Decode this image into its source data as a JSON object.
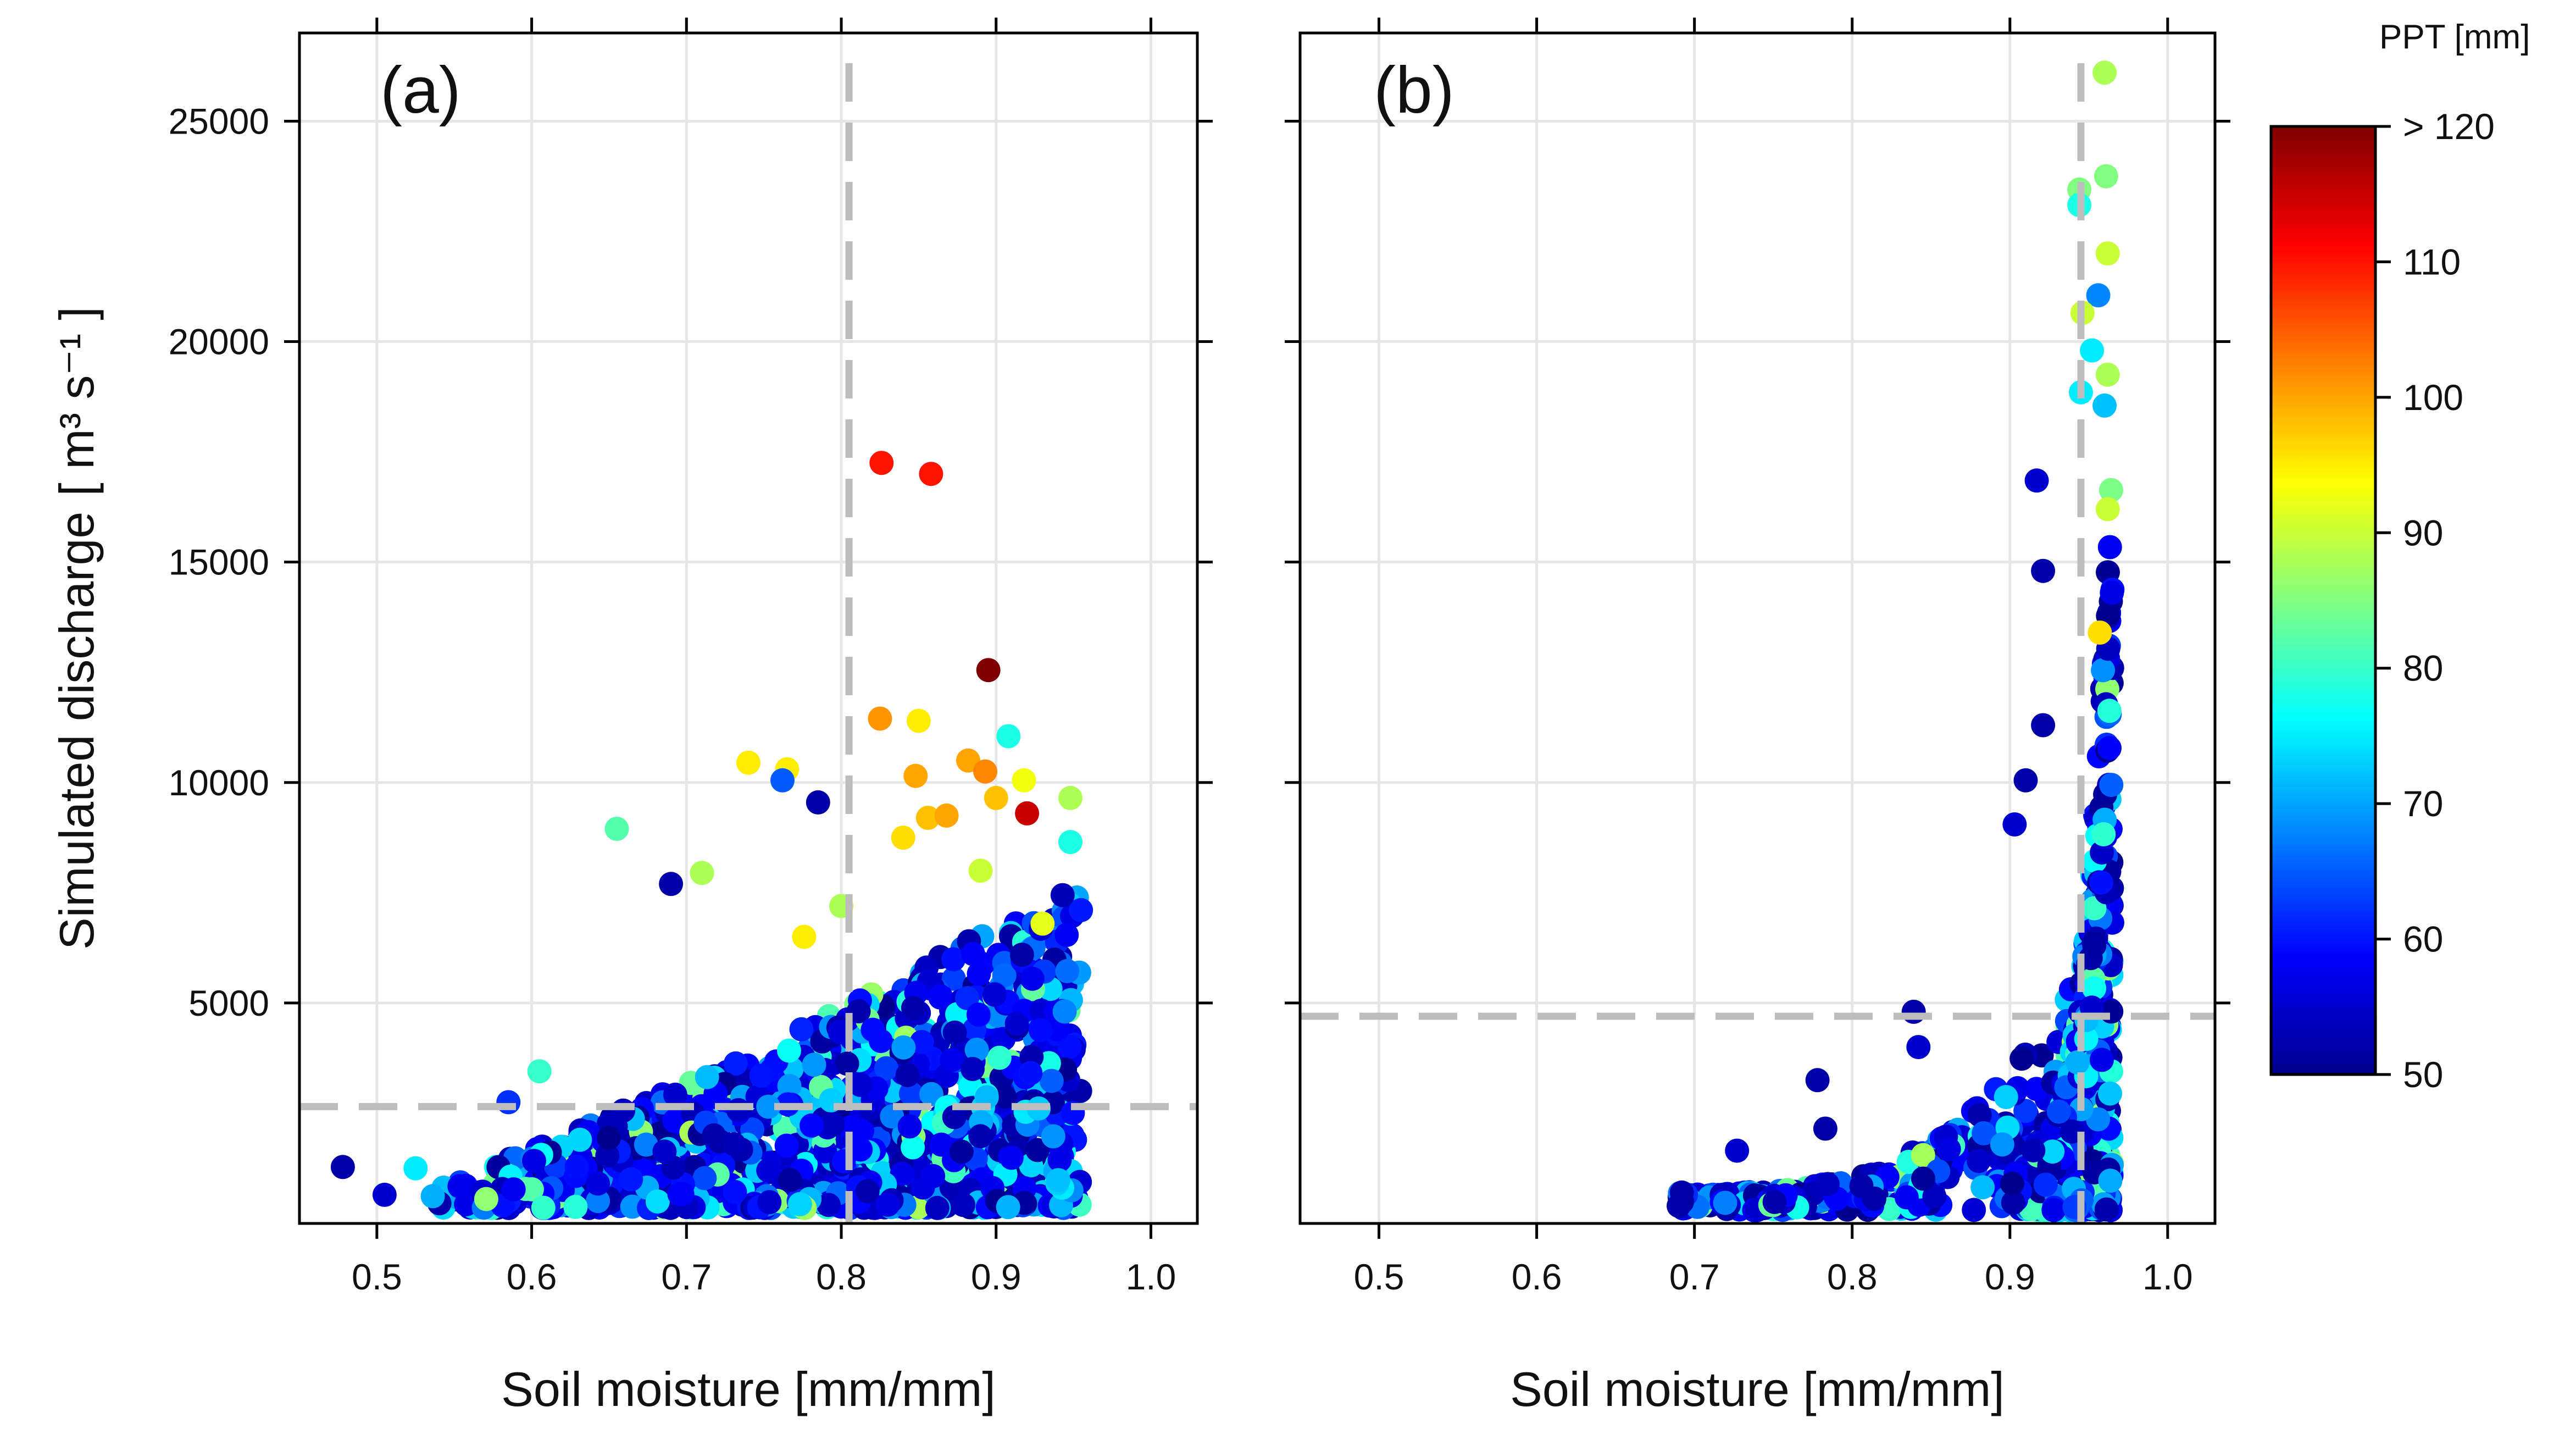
{
  "chart_data": [
    {
      "type": "scatter",
      "panel_label": "(a)",
      "xlabel": "Soil moisture [mm/mm]",
      "ylabel": "Simulated discharge",
      "ylabel_units": "[ m³ s⁻¹ ]",
      "xlim": [
        0.45,
        1.03
      ],
      "ylim": [
        0,
        27000
      ],
      "xticks": [
        0.5,
        0.6,
        0.7,
        0.8,
        0.9,
        1.0
      ],
      "xtick_labels": [
        "0.5",
        "0.6",
        "0.7",
        "0.8",
        "0.9",
        "1.0"
      ],
      "yticks": [
        5000,
        10000,
        15000,
        20000,
        25000
      ],
      "ytick_labels": [
        "5000",
        "10000",
        "15000",
        "20000",
        "25000"
      ],
      "threshold_x": 0.805,
      "threshold_y": 2650,
      "grid": true,
      "highlighted_points": [
        {
          "x": 0.826,
          "y": 17250,
          "ppt": 110
        },
        {
          "x": 0.858,
          "y": 17000,
          "ppt": 110
        },
        {
          "x": 0.895,
          "y": 12550,
          "ppt": 122
        },
        {
          "x": 0.92,
          "y": 9300,
          "ppt": 115
        },
        {
          "x": 0.825,
          "y": 11450,
          "ppt": 101
        },
        {
          "x": 0.85,
          "y": 11400,
          "ppt": 95
        },
        {
          "x": 0.74,
          "y": 10450,
          "ppt": 95
        },
        {
          "x": 0.765,
          "y": 10300,
          "ppt": 95
        },
        {
          "x": 0.882,
          "y": 10500,
          "ppt": 100
        },
        {
          "x": 0.893,
          "y": 10250,
          "ppt": 102
        },
        {
          "x": 0.908,
          "y": 11050,
          "ppt": 78
        },
        {
          "x": 0.918,
          "y": 10050,
          "ppt": 93
        },
        {
          "x": 0.9,
          "y": 9650,
          "ppt": 98
        },
        {
          "x": 0.848,
          "y": 10150,
          "ppt": 100
        },
        {
          "x": 0.856,
          "y": 9200,
          "ppt": 98
        },
        {
          "x": 0.868,
          "y": 9250,
          "ppt": 100
        },
        {
          "x": 0.948,
          "y": 9650,
          "ppt": 88
        },
        {
          "x": 0.785,
          "y": 9550,
          "ppt": 52
        },
        {
          "x": 0.762,
          "y": 10050,
          "ppt": 65
        },
        {
          "x": 0.655,
          "y": 8950,
          "ppt": 82
        },
        {
          "x": 0.71,
          "y": 7950,
          "ppt": 88
        },
        {
          "x": 0.69,
          "y": 7700,
          "ppt": 52
        },
        {
          "x": 0.948,
          "y": 8650,
          "ppt": 78
        },
        {
          "x": 0.84,
          "y": 8750,
          "ppt": 96
        },
        {
          "x": 0.605,
          "y": 3450,
          "ppt": 80
        },
        {
          "x": 0.478,
          "y": 1280,
          "ppt": 52
        },
        {
          "x": 0.505,
          "y": 650,
          "ppt": 55
        },
        {
          "x": 0.525,
          "y": 1250,
          "ppt": 75
        },
        {
          "x": 0.585,
          "y": 2750,
          "ppt": 62
        },
        {
          "x": 0.776,
          "y": 6500,
          "ppt": 95
        },
        {
          "x": 0.8,
          "y": 7200,
          "ppt": 88
        },
        {
          "x": 0.93,
          "y": 6800,
          "ppt": 92
        },
        {
          "x": 0.89,
          "y": 8000,
          "ppt": 90
        }
      ],
      "bulk_description": "dense cloud of PPT 50-80 mm points, discharge 300-7500 m3/s, soil moisture 0.53-0.955"
    },
    {
      "type": "scatter",
      "panel_label": "(b)",
      "xlabel": "Soil moisture [mm/mm]",
      "xlim": [
        0.45,
        1.03
      ],
      "ylim": [
        0,
        27000
      ],
      "xticks": [
        0.5,
        0.6,
        0.7,
        0.8,
        0.9,
        1.0
      ],
      "xtick_labels": [
        "0.5",
        "0.6",
        "0.7",
        "0.8",
        "0.9",
        "1.0"
      ],
      "threshold_x": 0.945,
      "threshold_y": 4700,
      "grid": true,
      "highlighted_points": [
        {
          "x": 0.96,
          "y": 26100,
          "ppt": 88
        },
        {
          "x": 0.961,
          "y": 23750,
          "ppt": 85
        },
        {
          "x": 0.944,
          "y": 23450,
          "ppt": 85
        },
        {
          "x": 0.944,
          "y": 23100,
          "ppt": 78
        },
        {
          "x": 0.962,
          "y": 22000,
          "ppt": 90
        },
        {
          "x": 0.956,
          "y": 21050,
          "ppt": 68
        },
        {
          "x": 0.946,
          "y": 20650,
          "ppt": 90
        },
        {
          "x": 0.952,
          "y": 19800,
          "ppt": 75
        },
        {
          "x": 0.962,
          "y": 19250,
          "ppt": 88
        },
        {
          "x": 0.945,
          "y": 18850,
          "ppt": 75
        },
        {
          "x": 0.96,
          "y": 18550,
          "ppt": 72
        },
        {
          "x": 0.917,
          "y": 16850,
          "ppt": 55
        },
        {
          "x": 0.921,
          "y": 14800,
          "ppt": 52
        },
        {
          "x": 0.962,
          "y": 16200,
          "ppt": 90
        },
        {
          "x": 0.957,
          "y": 13400,
          "ppt": 96
        },
        {
          "x": 0.921,
          "y": 11300,
          "ppt": 52
        },
        {
          "x": 0.91,
          "y": 10050,
          "ppt": 52
        },
        {
          "x": 0.903,
          "y": 9050,
          "ppt": 55
        },
        {
          "x": 0.839,
          "y": 4800,
          "ppt": 52
        },
        {
          "x": 0.842,
          "y": 4000,
          "ppt": 55
        },
        {
          "x": 0.778,
          "y": 3250,
          "ppt": 52
        },
        {
          "x": 0.783,
          "y": 2150,
          "ppt": 52
        },
        {
          "x": 0.727,
          "y": 1650,
          "ppt": 55
        },
        {
          "x": 0.692,
          "y": 700,
          "ppt": 52
        },
        {
          "x": 0.69,
          "y": 400,
          "ppt": 52
        }
      ],
      "bulk_description": "narrow L-shaped cloud, soil moisture 0.69-0.97, bulk near 0.94-0.965 up to 18000 m3/s"
    }
  ],
  "colorbar": {
    "title": "PPT [mm]",
    "min": 50,
    "max": 120,
    "ticks": [
      50,
      60,
      70,
      80,
      90,
      100,
      110,
      120
    ],
    "tick_labels": [
      "50",
      "60",
      "70",
      "80",
      "90",
      "100",
      "110",
      "> 120"
    ],
    "palette": [
      "#00008f",
      "#0000ff",
      "#0080ff",
      "#00ffff",
      "#80ff80",
      "#ffff00",
      "#ff8000",
      "#ff0000",
      "#800000"
    ]
  }
}
